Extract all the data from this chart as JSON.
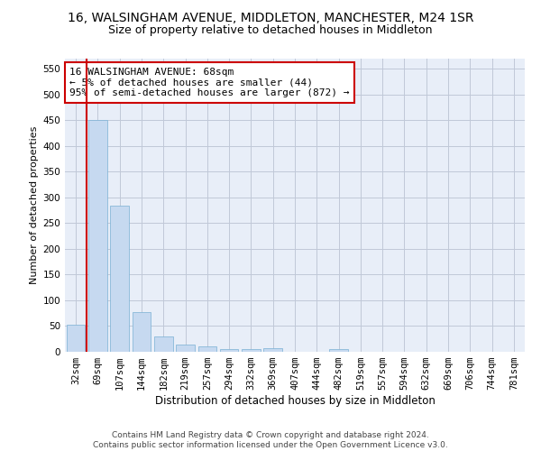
{
  "title1": "16, WALSINGHAM AVENUE, MIDDLETON, MANCHESTER, M24 1SR",
  "title2": "Size of property relative to detached houses in Middleton",
  "xlabel": "Distribution of detached houses by size in Middleton",
  "ylabel": "Number of detached properties",
  "bar_labels": [
    "32sqm",
    "69sqm",
    "107sqm",
    "144sqm",
    "182sqm",
    "219sqm",
    "257sqm",
    "294sqm",
    "332sqm",
    "369sqm",
    "407sqm",
    "444sqm",
    "482sqm",
    "519sqm",
    "557sqm",
    "594sqm",
    "632sqm",
    "669sqm",
    "706sqm",
    "744sqm",
    "781sqm"
  ],
  "bar_values": [
    53,
    451,
    284,
    78,
    30,
    14,
    10,
    5,
    5,
    7,
    0,
    0,
    5,
    0,
    0,
    0,
    0,
    0,
    0,
    0,
    0
  ],
  "bar_color": "#c6d9f0",
  "bar_edge_color": "#7ab0d4",
  "grid_color": "#c0c8d8",
  "background_color": "#e8eef8",
  "vline_x": 0.5,
  "vline_color": "#cc0000",
  "annotation_text": "16 WALSINGHAM AVENUE: 68sqm\n← 5% of detached houses are smaller (44)\n95% of semi-detached houses are larger (872) →",
  "annotation_box_color": "white",
  "annotation_box_edge": "#cc0000",
  "ylim": [
    0,
    570
  ],
  "yticks": [
    0,
    50,
    100,
    150,
    200,
    250,
    300,
    350,
    400,
    450,
    500,
    550
  ],
  "footnote": "Contains HM Land Registry data © Crown copyright and database right 2024.\nContains public sector information licensed under the Open Government Licence v3.0.",
  "title1_fontsize": 10,
  "title2_fontsize": 9,
  "ylabel_fontsize": 8,
  "xlabel_fontsize": 8.5,
  "tick_fontsize": 7.5,
  "annotation_fontsize": 8,
  "footnote_fontsize": 6.5
}
